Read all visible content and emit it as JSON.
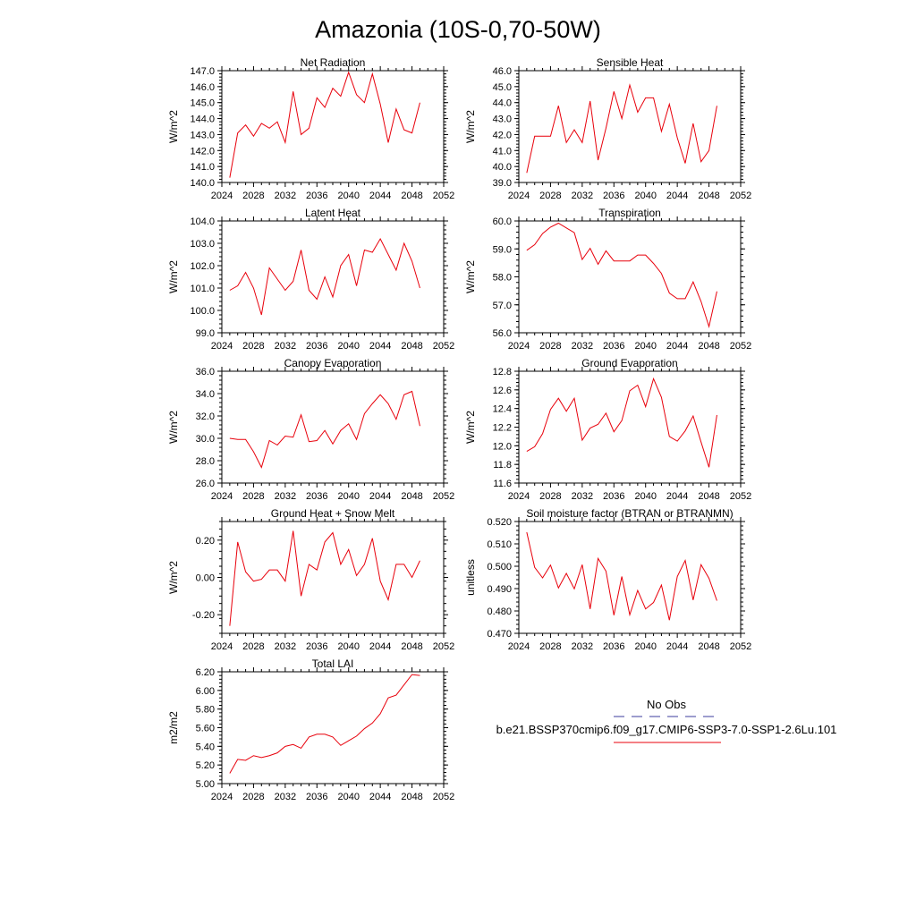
{
  "figure_title": "Amazonia (10S-0,70-50W)",
  "colors": {
    "model_line": "#e8000b",
    "obs_line": "#3b3b9e",
    "axis": "#000000"
  },
  "legend": {
    "obs_label": "No Obs",
    "model_label": "b.e21.BSSP370cmip6.f09_g17.CMIP6-SSP3-7.0-SSP1-2.6Lu.101"
  },
  "chart_data": [
    {
      "type": "line",
      "title": "Net Radiation",
      "ylabel": "W/m^2",
      "xlim": [
        2024,
        2052
      ],
      "ylim": [
        140,
        147
      ],
      "xticks": [
        "2024",
        "2028",
        "2032",
        "2036",
        "2040",
        "2044",
        "2048",
        "2052"
      ],
      "yticks": [
        "140.0",
        "141.0",
        "142.0",
        "143.0",
        "144.0",
        "145.0",
        "146.0",
        "147.0"
      ],
      "x": [
        2025,
        2026,
        2027,
        2028,
        2029,
        2030,
        2031,
        2032,
        2033,
        2034,
        2035,
        2036,
        2037,
        2038,
        2039,
        2040,
        2041,
        2042,
        2043,
        2044,
        2045,
        2046,
        2047,
        2048,
        2049
      ],
      "series": [
        {
          "values": [
            140.3,
            143.1,
            143.6,
            142.9,
            143.7,
            143.4,
            143.8,
            142.5,
            145.7,
            143.0,
            143.4,
            145.3,
            144.7,
            145.9,
            145.4,
            146.9,
            145.5,
            145.0,
            146.8,
            144.9,
            142.5,
            144.6,
            143.3,
            143.1,
            145.0
          ]
        }
      ]
    },
    {
      "type": "line",
      "title": "Sensible Heat",
      "ylabel": "W/m^2",
      "xlim": [
        2024,
        2052
      ],
      "ylim": [
        39,
        46
      ],
      "xticks": [
        "2024",
        "2028",
        "2032",
        "2036",
        "2040",
        "2044",
        "2048",
        "2052"
      ],
      "yticks": [
        "39.0",
        "40.0",
        "41.0",
        "42.0",
        "43.0",
        "44.0",
        "45.0",
        "46.0"
      ],
      "x": [
        2025,
        2026,
        2027,
        2028,
        2029,
        2030,
        2031,
        2032,
        2033,
        2034,
        2035,
        2036,
        2037,
        2038,
        2039,
        2040,
        2041,
        2042,
        2043,
        2044,
        2045,
        2046,
        2047,
        2048,
        2049
      ],
      "series": [
        {
          "values": [
            39.6,
            41.9,
            41.9,
            41.9,
            43.8,
            41.5,
            42.3,
            41.5,
            44.1,
            40.4,
            42.4,
            44.7,
            43.0,
            45.1,
            43.4,
            44.3,
            44.3,
            42.2,
            43.9,
            41.8,
            40.2,
            42.7,
            40.3,
            41.0,
            43.8
          ]
        }
      ]
    },
    {
      "type": "line",
      "title": "Latent Heat",
      "ylabel": "W/m^2",
      "xlim": [
        2024,
        2052
      ],
      "ylim": [
        99,
        104
      ],
      "xticks": [
        "2024",
        "2028",
        "2032",
        "2036",
        "2040",
        "2044",
        "2048",
        "2052"
      ],
      "yticks": [
        "99.0",
        "100.0",
        "101.0",
        "102.0",
        "103.0",
        "104.0"
      ],
      "x": [
        2025,
        2026,
        2027,
        2028,
        2029,
        2030,
        2031,
        2032,
        2033,
        2034,
        2035,
        2036,
        2037,
        2038,
        2039,
        2040,
        2041,
        2042,
        2043,
        2044,
        2045,
        2046,
        2047,
        2048,
        2049
      ],
      "series": [
        {
          "values": [
            100.9,
            101.1,
            101.7,
            101.0,
            99.8,
            101.9,
            101.4,
            100.9,
            101.3,
            102.7,
            100.9,
            100.5,
            101.5,
            100.6,
            102.0,
            102.5,
            101.1,
            102.7,
            102.6,
            103.2,
            102.5,
            101.8,
            103.0,
            102.2,
            101.0
          ]
        }
      ]
    },
    {
      "type": "line",
      "title": "Transpiration",
      "ylabel": "W/m^2",
      "xlim": [
        2024,
        2052
      ],
      "ylim": [
        56,
        60
      ],
      "xticks": [
        "2024",
        "2028",
        "2032",
        "2036",
        "2040",
        "2044",
        "2048",
        "2052"
      ],
      "yticks": [
        "56.0",
        "57.0",
        "58.0",
        "59.0",
        "60.0"
      ],
      "x": [
        2025,
        2026,
        2027,
        2028,
        2029,
        2030,
        2031,
        2032,
        2033,
        2034,
        2035,
        2036,
        2037,
        2038,
        2039,
        2040,
        2041,
        2042,
        2043,
        2044,
        2045,
        2046,
        2047,
        2048,
        2049
      ],
      "series": [
        {
          "values": [
            58.95,
            59.15,
            59.55,
            59.78,
            59.92,
            59.75,
            59.58,
            58.62,
            59.02,
            58.45,
            58.93,
            58.57,
            58.57,
            58.57,
            58.78,
            58.78,
            58.48,
            58.12,
            57.42,
            57.22,
            57.22,
            57.82,
            57.12,
            56.22,
            57.48
          ]
        }
      ]
    },
    {
      "type": "line",
      "title": "Canopy Evaporation",
      "ylabel": "W/m^2",
      "xlim": [
        2024,
        2052
      ],
      "ylim": [
        26,
        36
      ],
      "xticks": [
        "2024",
        "2028",
        "2032",
        "2036",
        "2040",
        "2044",
        "2048",
        "2052"
      ],
      "yticks": [
        "26.0",
        "28.0",
        "30.0",
        "32.0",
        "34.0",
        "36.0"
      ],
      "x": [
        2025,
        2026,
        2027,
        2028,
        2029,
        2030,
        2031,
        2032,
        2033,
        2034,
        2035,
        2036,
        2037,
        2038,
        2039,
        2040,
        2041,
        2042,
        2043,
        2044,
        2045,
        2046,
        2047,
        2048,
        2049
      ],
      "series": [
        {
          "values": [
            30.0,
            29.9,
            29.9,
            28.8,
            27.4,
            29.8,
            29.4,
            30.2,
            30.1,
            32.1,
            29.7,
            29.8,
            30.7,
            29.5,
            30.7,
            31.3,
            29.9,
            32.2,
            33.1,
            33.9,
            33.1,
            31.7,
            33.9,
            34.2,
            31.1
          ]
        }
      ]
    },
    {
      "type": "line",
      "title": "Ground Evaporation",
      "ylabel": "W/m^2",
      "xlim": [
        2024,
        2052
      ],
      "ylim": [
        11.6,
        12.8
      ],
      "xticks": [
        "2024",
        "2028",
        "2032",
        "2036",
        "2040",
        "2044",
        "2048",
        "2052"
      ],
      "yticks": [
        "11.6",
        "11.8",
        "12.0",
        "12.2",
        "12.4",
        "12.6",
        "12.8"
      ],
      "x": [
        2025,
        2026,
        2027,
        2028,
        2029,
        2030,
        2031,
        2032,
        2033,
        2034,
        2035,
        2036,
        2037,
        2038,
        2039,
        2040,
        2041,
        2042,
        2043,
        2044,
        2045,
        2046,
        2047,
        2048,
        2049
      ],
      "series": [
        {
          "values": [
            11.94,
            11.99,
            12.13,
            12.39,
            12.51,
            12.37,
            12.51,
            12.06,
            12.19,
            12.23,
            12.35,
            12.15,
            12.27,
            12.59,
            12.65,
            12.42,
            12.72,
            12.52,
            12.1,
            12.05,
            12.16,
            12.32,
            12.04,
            11.77,
            12.33
          ]
        }
      ]
    },
    {
      "type": "line",
      "title": "Ground Heat + Snow Melt",
      "ylabel": "W/m^2",
      "xlim": [
        2024,
        2052
      ],
      "ylim": [
        -0.3,
        0.3
      ],
      "xticks": [
        "2024",
        "2028",
        "2032",
        "2036",
        "2040",
        "2044",
        "2048",
        "2052"
      ],
      "yticks": [
        "-0.20",
        "0.00",
        "0.20"
      ],
      "ytick_values": [
        -0.2,
        0.0,
        0.2
      ],
      "x": [
        2025,
        2026,
        2027,
        2028,
        2029,
        2030,
        2031,
        2032,
        2033,
        2034,
        2035,
        2036,
        2037,
        2038,
        2039,
        2040,
        2041,
        2042,
        2043,
        2044,
        2045,
        2046,
        2047,
        2048,
        2049
      ],
      "series": [
        {
          "values": [
            -0.26,
            0.19,
            0.03,
            -0.02,
            -0.01,
            0.04,
            0.04,
            -0.02,
            0.25,
            -0.1,
            0.07,
            0.04,
            0.19,
            0.24,
            0.07,
            0.15,
            0.01,
            0.07,
            0.21,
            -0.02,
            -0.12,
            0.07,
            0.07,
            0.0,
            0.09
          ]
        }
      ]
    },
    {
      "type": "line",
      "title": "Soil moisture factor (BTRAN or BTRANMN)",
      "ylabel": "unitless",
      "xlim": [
        2024,
        2052
      ],
      "ylim": [
        0.47,
        0.52
      ],
      "xticks": [
        "2024",
        "2028",
        "2032",
        "2036",
        "2040",
        "2044",
        "2048",
        "2052"
      ],
      "yticks": [
        "0.470",
        "0.480",
        "0.490",
        "0.500",
        "0.510",
        "0.520"
      ],
      "x": [
        2025,
        2026,
        2027,
        2028,
        2029,
        2030,
        2031,
        2032,
        2033,
        2034,
        2035,
        2036,
        2037,
        2038,
        2039,
        2040,
        2041,
        2042,
        2043,
        2044,
        2045,
        2046,
        2047,
        2048,
        2049
      ],
      "series": [
        {
          "values": [
            0.5152,
            0.4995,
            0.4948,
            0.5005,
            0.4903,
            0.4968,
            0.4899,
            0.5007,
            0.4809,
            0.5035,
            0.4978,
            0.4781,
            0.4954,
            0.4783,
            0.4892,
            0.4809,
            0.4838,
            0.4916,
            0.4759,
            0.4954,
            0.5026,
            0.4849,
            0.5007,
            0.4946,
            0.4846
          ]
        }
      ]
    },
    {
      "type": "line",
      "title": "Total LAI",
      "ylabel": "m2/m2",
      "xlim": [
        2024,
        2052
      ],
      "ylim": [
        5.0,
        6.2
      ],
      "xticks": [
        "2024",
        "2028",
        "2032",
        "2036",
        "2040",
        "2044",
        "2048",
        "2052"
      ],
      "yticks": [
        "5.00",
        "5.20",
        "5.40",
        "5.60",
        "5.80",
        "6.00",
        "6.20"
      ],
      "x": [
        2025,
        2026,
        2027,
        2028,
        2029,
        2030,
        2031,
        2032,
        2033,
        2034,
        2035,
        2036,
        2037,
        2038,
        2039,
        2040,
        2041,
        2042,
        2043,
        2044,
        2045,
        2046,
        2047,
        2048,
        2049
      ],
      "series": [
        {
          "values": [
            5.11,
            5.26,
            5.25,
            5.3,
            5.28,
            5.3,
            5.33,
            5.4,
            5.42,
            5.38,
            5.5,
            5.53,
            5.53,
            5.5,
            5.41,
            5.46,
            5.51,
            5.59,
            5.65,
            5.75,
            5.92,
            5.95,
            6.06,
            6.17,
            6.16
          ]
        }
      ]
    }
  ]
}
